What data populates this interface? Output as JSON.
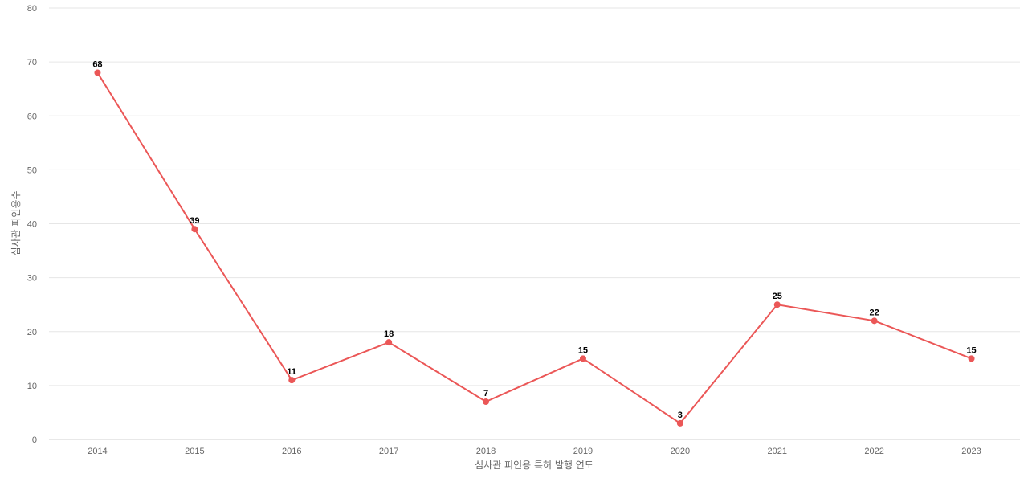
{
  "chart_data": {
    "type": "line",
    "xlabel": "심사관 피인용 특허 발행 연도",
    "ylabel": "심사관 피인용수",
    "categories": [
      "2014",
      "2015",
      "2016",
      "2017",
      "2018",
      "2019",
      "2020",
      "2021",
      "2022",
      "2023"
    ],
    "series": [
      {
        "values": [
          68,
          39,
          11,
          18,
          7,
          15,
          3,
          25,
          22,
          15
        ],
        "color": "#eb5757"
      }
    ],
    "ylim": [
      0,
      80
    ],
    "yticks": [
      0,
      10,
      20,
      30,
      40,
      50,
      60,
      70,
      80
    ],
    "grid": true,
    "data_labels": true,
    "legend": "none"
  }
}
